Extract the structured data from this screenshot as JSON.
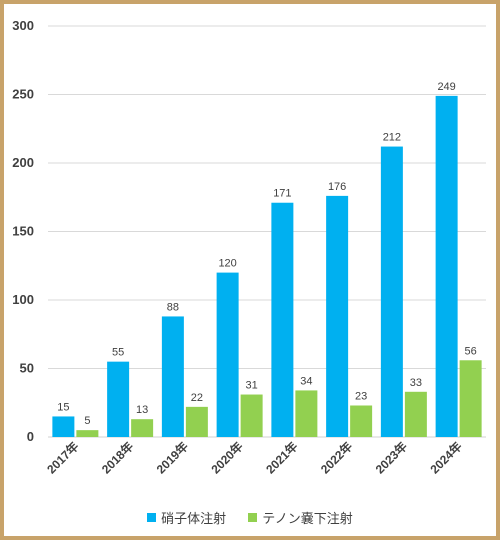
{
  "chart_data": {
    "type": "bar",
    "categories": [
      "2017年",
      "2018年",
      "2019年",
      "2020年",
      "2021年",
      "2022年",
      "2023年",
      "2024年"
    ],
    "series": [
      {
        "name": "硝子体注射",
        "values": [
          15,
          55,
          88,
          120,
          171,
          176,
          212,
          249
        ],
        "color": "#00b0f0"
      },
      {
        "name": "テノン嚢下注射",
        "values": [
          5,
          13,
          22,
          31,
          34,
          23,
          33,
          56
        ],
        "color": "#92d050"
      }
    ],
    "ylim": [
      0,
      300
    ],
    "yticks": [
      0,
      50,
      100,
      150,
      200,
      250,
      300
    ],
    "grid": true,
    "legend_position": "bottom"
  }
}
